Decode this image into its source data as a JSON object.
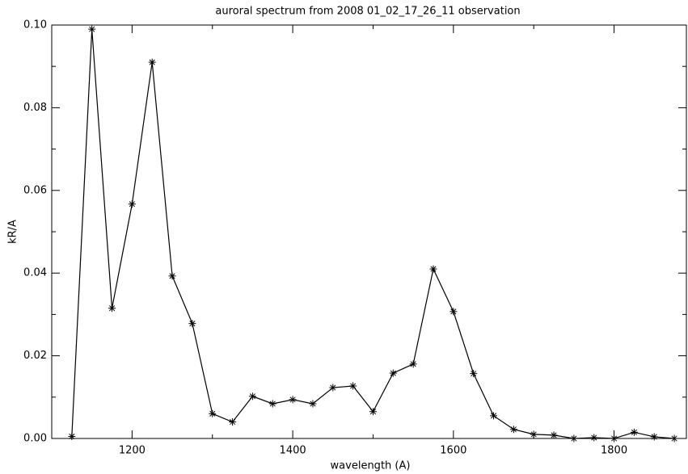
{
  "chart_data": {
    "type": "line",
    "title": "auroral spectrum from 2008 01_02_17_26_11 observation",
    "xlabel": "wavelength (A)",
    "ylabel": "kR/A",
    "x": [
      1125,
      1150,
      1175,
      1200,
      1225,
      1250,
      1275,
      1300,
      1325,
      1350,
      1375,
      1400,
      1425,
      1450,
      1475,
      1500,
      1525,
      1550,
      1575,
      1600,
      1625,
      1650,
      1675,
      1700,
      1725,
      1750,
      1775,
      1800,
      1825,
      1850,
      1875
    ],
    "series": [
      {
        "color": "#000000",
        "values": [
          0.0005,
          0.099,
          0.0315,
          0.0567,
          0.091,
          0.0393,
          0.0278,
          0.006,
          0.004,
          0.0102,
          0.0084,
          0.0094,
          0.0084,
          0.0123,
          0.0127,
          0.0065,
          0.0158,
          0.018,
          0.041,
          0.0307,
          0.0157,
          0.0055,
          0.0022,
          0.001,
          0.0008,
          0,
          0.0002,
          0,
          0.0015,
          0.0004,
          0
        ]
      }
    ],
    "xlim": [
      1100,
      1890
    ],
    "ylim": [
      0,
      0.1
    ],
    "xticks": [
      1200,
      1400,
      1600,
      1800
    ],
    "yticks": [
      {
        "value": 0,
        "label": "0.00"
      },
      {
        "value": 0.02,
        "label": "0.02"
      },
      {
        "value": 0.04,
        "label": "0.04"
      },
      {
        "value": 0.06,
        "label": "0.06"
      },
      {
        "value": 0.08,
        "label": "0.08"
      },
      {
        "value": 0.1,
        "label": "0.10"
      }
    ],
    "marker": "asterisk"
  }
}
